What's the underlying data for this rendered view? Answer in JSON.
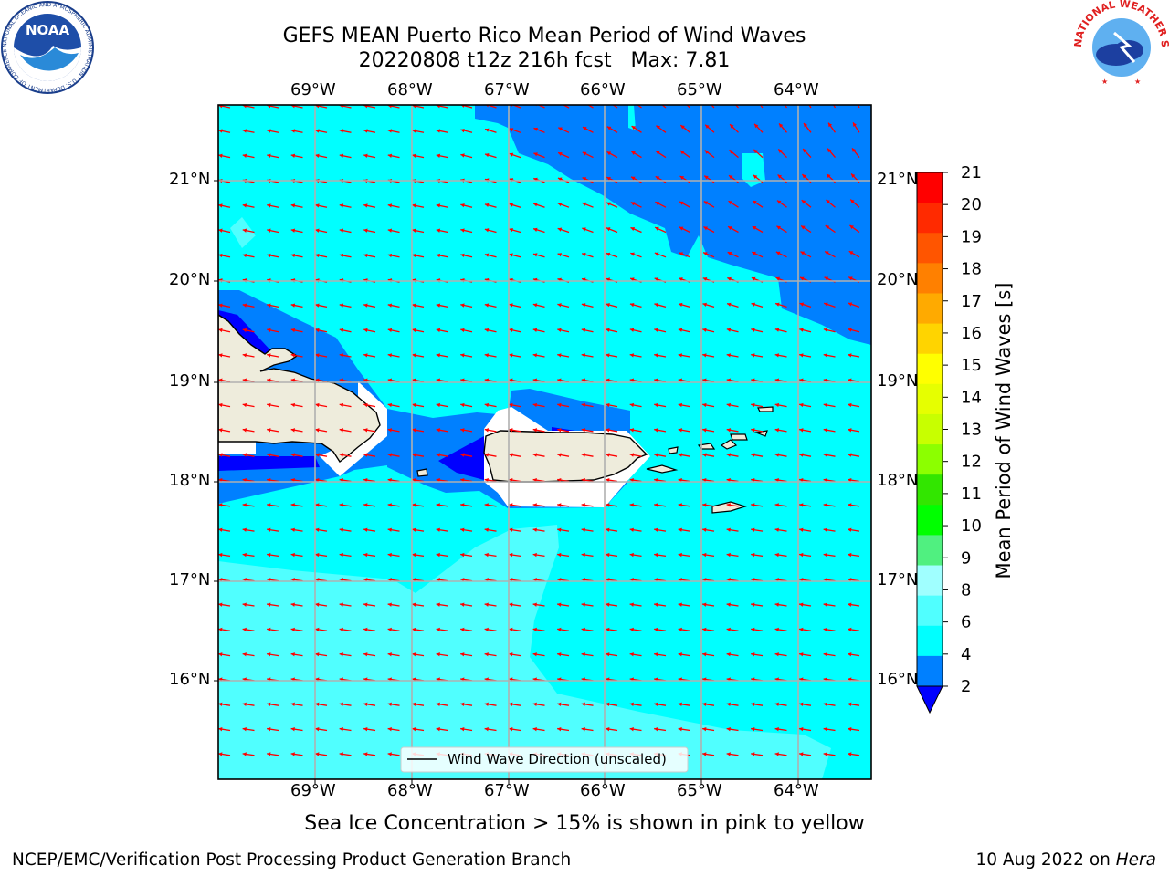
{
  "title": "GEFS MEAN Puerto Rico Mean Period of Wind Waves",
  "subtitle": "20220808 t12z 216h fcst   Max: 7.81",
  "map": {
    "lon_labels": [
      "69°W",
      "68°W",
      "67°W",
      "66°W",
      "65°W",
      "64°W"
    ],
    "lat_labels": [
      "21°N",
      "20°N",
      "19°N",
      "18°N",
      "17°N",
      "16°N"
    ],
    "legend_label": "Wind Wave Direction (unscaled)",
    "colors": {
      "land": "#eeecdc",
      "cyan": "#00ffff",
      "light_cyan": "#50ffff",
      "blue": "#0080ff",
      "dark_blue": "#0000ff",
      "arrow": "#ff0000",
      "grid": "#b0b0b0"
    }
  },
  "colorbar": {
    "label": "Mean Period of Wind Waves [s]",
    "ticks": [
      "21",
      "20",
      "19",
      "18",
      "17",
      "16",
      "15",
      "14",
      "13",
      "12",
      "11",
      "10",
      "9",
      "8",
      "6",
      "4",
      "2"
    ],
    "colors": [
      "#ff0000",
      "#ff2a00",
      "#ff5500",
      "#ff8000",
      "#ffaa00",
      "#ffd400",
      "#ffff00",
      "#e6ff00",
      "#c8ff00",
      "#8cff00",
      "#32e600",
      "#00ff00",
      "#50f080",
      "#a0ffff",
      "#50ffff",
      "#00ffff",
      "#0080ff"
    ],
    "under_color": "#0000ff"
  },
  "footer": {
    "ice_note": "Sea Ice Concentration > 15% is shown in pink to yellow",
    "credit": "NCEP/EMC/Verification Post Processing Product Generation Branch",
    "date": "10 Aug 2022 on ",
    "machine": "Hera"
  },
  "logos": {
    "noaa": "NOAA",
    "noaa_ring": "NATIONAL OCEANIC AND ATMOSPHERIC ADMINISTRATION · U.S. DEPARTMENT OF COMMERCE",
    "nws_ring": "NATIONAL WEATHER SERVICE"
  }
}
